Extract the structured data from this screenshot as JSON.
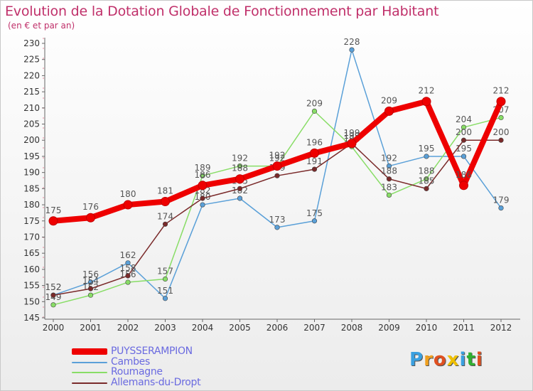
{
  "title": "Evolution de la Dotation Globale de Fonctionnement par Habitant",
  "subtitle": "(en € et par an)",
  "logo": {
    "letters": [
      "P",
      "r",
      "o",
      "x",
      "i",
      "t",
      "i"
    ],
    "colors": [
      "#3aa0e0",
      "#f0a020",
      "#e05020",
      "#f0c000",
      "#3aa0e0",
      "#30b030",
      "#e05020"
    ]
  },
  "chart_data": {
    "type": "line",
    "title": "Evolution de la Dotation Globale de Fonctionnement par Habitant",
    "subtitle": "(en € et par an)",
    "x": [
      "2000",
      "2001",
      "2002",
      "2003",
      "2004",
      "2005",
      "2006",
      "2007",
      "2008",
      "2009",
      "2010",
      "2011",
      "2012"
    ],
    "ylim": [
      145,
      230
    ],
    "yticks": [
      145,
      150,
      155,
      160,
      165,
      170,
      175,
      180,
      185,
      190,
      195,
      200,
      205,
      210,
      215,
      220,
      225,
      230
    ],
    "grid": false,
    "series": [
      {
        "name": "PUYSSERAMPION",
        "color": "#ee0000",
        "emphasis": true,
        "values": [
          175,
          176,
          180,
          181,
          186,
          188,
          192,
          196,
          199,
          209,
          212,
          186,
          212
        ],
        "labels": [
          "175",
          "176",
          "180",
          "181",
          "186",
          "188",
          "192",
          "196",
          "199",
          "209",
          "212",
          "186",
          "212"
        ]
      },
      {
        "name": "Cambes",
        "color": "#5aa0d8",
        "values": [
          152,
          156,
          162,
          151,
          180,
          182,
          173,
          175,
          228,
          192,
          195,
          195,
          179
        ],
        "labels": [
          "152",
          "156",
          "162",
          "151",
          "180",
          "182",
          "173",
          "175",
          "228",
          "192",
          "195",
          "195",
          "179"
        ]
      },
      {
        "name": "Roumagne",
        "color": "#88dd66",
        "values": [
          149,
          152,
          156,
          157,
          189,
          192,
          192,
          209,
          198,
          183,
          188,
          204,
          207
        ],
        "labels": [
          "149",
          "152",
          "156",
          "157",
          "189",
          "192",
          "192",
          "209",
          "198",
          "183",
          "188",
          "204",
          "207"
        ]
      },
      {
        "name": "Allemans-du-Dropt",
        "color": "#7a2a2a",
        "values": [
          152,
          154,
          158,
          174,
          182,
          185,
          189,
          191,
          199,
          188,
          185,
          200,
          200
        ],
        "labels": [
          "152",
          "154",
          "158",
          "174",
          "182",
          "185",
          "189",
          "191",
          "199",
          "188",
          "185",
          "200",
          "200"
        ]
      }
    ]
  }
}
